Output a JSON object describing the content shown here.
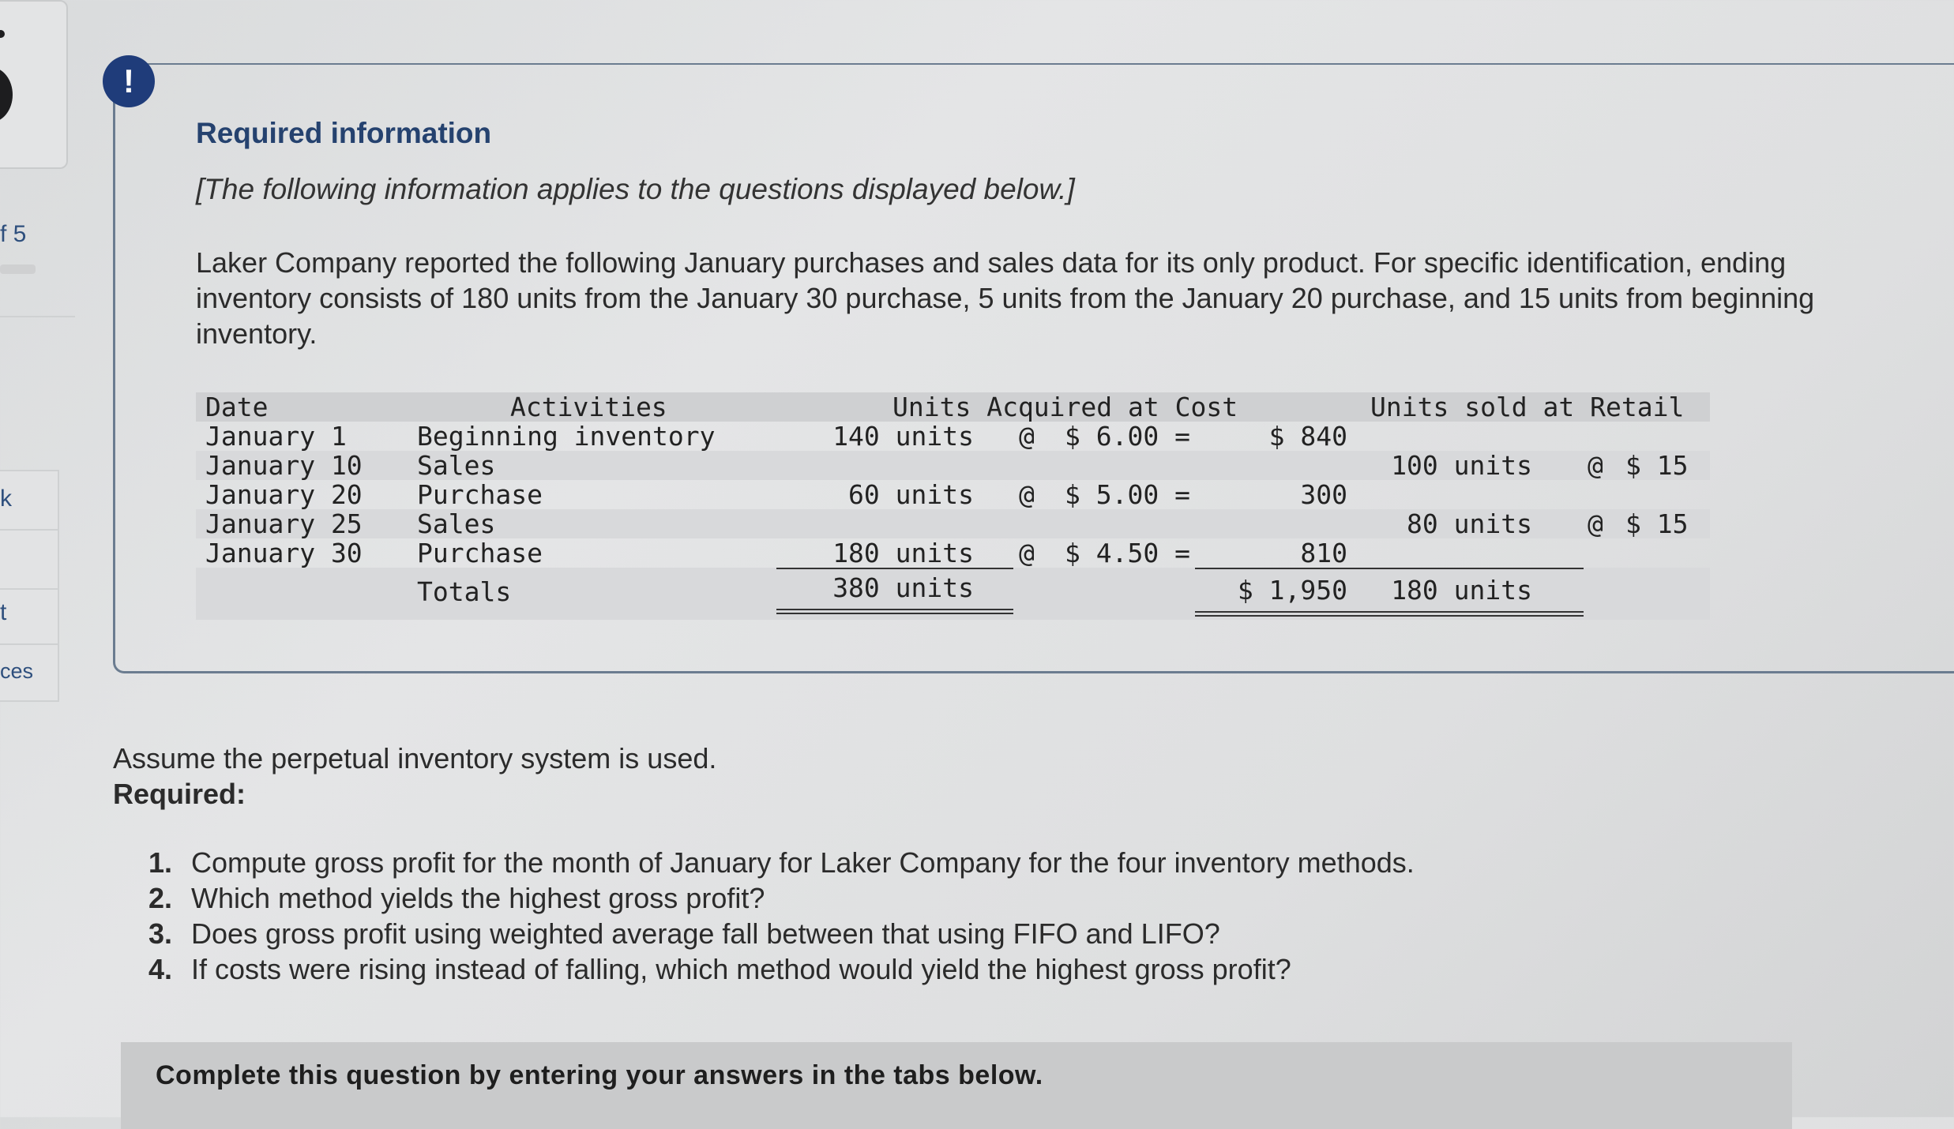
{
  "sidebar": {
    "fragments": [
      "f 5",
      "k",
      "t",
      "ces"
    ]
  },
  "info": {
    "title": "Required information",
    "note": "[The following information applies to the questions displayed below.]",
    "description": "Laker Company reported the following January purchases and sales data for its only product. For specific identification, ending inventory consists of 180 units from the January 30 purchase, 5 units from the January 20 purchase, and 15 units from beginning inventory."
  },
  "table": {
    "headers": {
      "date": "Date",
      "activities": "Activities",
      "acquired": "Units Acquired at Cost",
      "sold": "Units sold at Retail"
    },
    "rows": [
      {
        "date": "January 1",
        "activity": "Beginning inventory",
        "units": "140 units",
        "at": "@",
        "cost": "$ 6.00 =",
        "total": "$ 840",
        "sold_units": "",
        "sold_at": "",
        "retail": ""
      },
      {
        "date": "January 10",
        "activity": "Sales",
        "units": "",
        "at": "",
        "cost": "",
        "total": "",
        "sold_units": "100 units",
        "sold_at": "@",
        "retail": "$ 15"
      },
      {
        "date": "January 20",
        "activity": "Purchase",
        "units": "60 units",
        "at": "@",
        "cost": "$ 5.00 =",
        "total": "300",
        "sold_units": "",
        "sold_at": "",
        "retail": ""
      },
      {
        "date": "January 25",
        "activity": "Sales",
        "units": "",
        "at": "",
        "cost": "",
        "total": "",
        "sold_units": "80 units",
        "sold_at": "@",
        "retail": "$ 15"
      },
      {
        "date": "January 30",
        "activity": "Purchase",
        "units": "180 units",
        "at": "@",
        "cost": "$ 4.50 =",
        "total": "810",
        "sold_units": "",
        "sold_at": "",
        "retail": ""
      }
    ],
    "totals": {
      "label": "Totals",
      "units": "380 units",
      "total": "$ 1,950",
      "sold_units": "180 units"
    }
  },
  "body": {
    "assume": "Assume the perpetual inventory system is used.",
    "required": "Required:",
    "questions": [
      {
        "num": "1.",
        "text": "Compute gross profit for the month of January for Laker Company for the four inventory methods."
      },
      {
        "num": "2.",
        "text": "Which method yields the highest gross profit?"
      },
      {
        "num": "3.",
        "text": "Does gross profit using weighted average fall between that using FIFO and LIFO?"
      },
      {
        "num": "4.",
        "text": "If costs were rising instead of falling, which method would yield the highest gross profit?"
      }
    ],
    "complete_prompt": "Complete this question by entering your answers in the tabs below."
  },
  "colors": {
    "title_blue": "#25426f",
    "alert_icon": "#1f3c7a",
    "panel_border": "#6b7c90"
  },
  "icons": {
    "alert": "exclamation-circle-icon",
    "alert_glyph": "!"
  }
}
